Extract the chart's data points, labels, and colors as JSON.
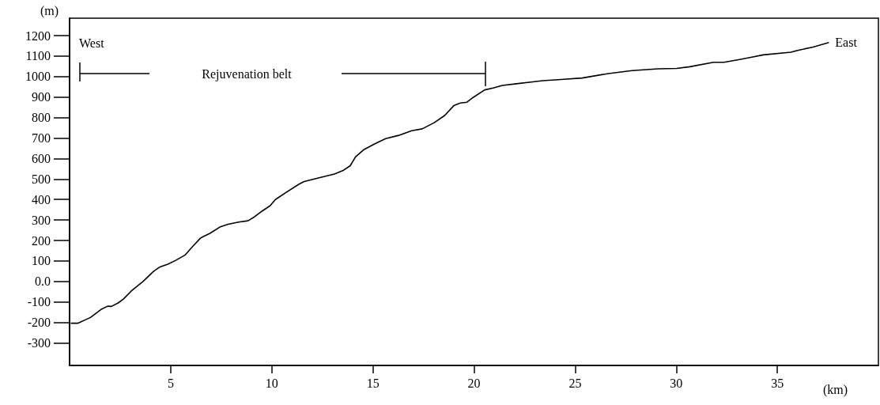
{
  "chart_data": {
    "type": "line",
    "xlabel": "(km)",
    "ylabel": "(m)",
    "xlim": [
      0,
      40
    ],
    "ylim": [
      -410,
      1285
    ],
    "xticks": [
      5,
      10,
      15,
      20,
      25,
      30,
      35
    ],
    "yticks": [
      -300,
      -200,
      -100,
      {
        "value": 0,
        "label": "0.0"
      },
      100,
      200,
      300,
      400,
      500,
      600,
      700,
      800,
      900,
      1000,
      1100,
      1200
    ],
    "annotations": [
      "West",
      "Rejuvenation belt",
      {
        "text": "East",
        "x": 37.55,
        "y": 1166
      }
    ],
    "series": [
      {
        "color": "#000000",
        "x": [
          0.06,
          0.4,
          1.03,
          1.55,
          1.88,
          2.07,
          2.4,
          2.66,
          3.05,
          3.63,
          4.15,
          4.47,
          4.86,
          5.25,
          5.7,
          6.09,
          6.48,
          6.94,
          7.46,
          7.84,
          8.36,
          8.82,
          9.14,
          9.53,
          9.92,
          10.18,
          10.7,
          11.35,
          11.6,
          12.38,
          13.1,
          13.55,
          13.88,
          14.14,
          14.53,
          15.1,
          15.63,
          16.28,
          16.92,
          17.44,
          18.03,
          18.55,
          19.0,
          19.32,
          19.65,
          19.97,
          20.53,
          20.95,
          21.4,
          22.1,
          22.9,
          23.4,
          24.3,
          25.35,
          26.65,
          27.82,
          29.1,
          30.02,
          30.67,
          31.84,
          32.36,
          33.13,
          33.79,
          34.3,
          35.67,
          36.0,
          36.77,
          37.55
        ],
        "values": [
          -204,
          -204,
          -176,
          -137,
          -121,
          -122,
          -105,
          -86,
          -47,
          0,
          49,
          71,
          84,
          103,
          128,
          171,
          212,
          235,
          267,
          279,
          290,
          296,
          315,
          344,
          370,
          400,
          434,
          475,
          488,
          507,
          524,
          543,
          565,
          608,
          642,
          672,
          697,
          713,
          736,
          745,
          775,
          810,
          858,
          871,
          875,
          899,
          935,
          944,
          957,
          965,
          974,
          980,
          986,
          993,
          1015,
          1029,
          1038,
          1040,
          1048,
          1070,
          1070,
          1083,
          1096,
          1106,
          1119,
          1128,
          1144,
          1166
        ]
      }
    ]
  }
}
